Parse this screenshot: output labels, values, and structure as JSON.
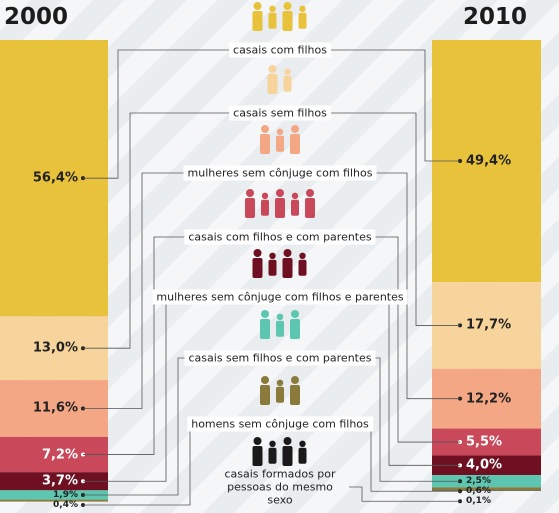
{
  "chart_data": {
    "type": "stacked-bar",
    "categories": [
      "2000",
      "2010"
    ],
    "series": [
      {
        "name": "casais com filhos",
        "color": "#e9c23b",
        "values": [
          56.4,
          49.4
        ],
        "value_labels": [
          "56,4%",
          "49,4%"
        ]
      },
      {
        "name": "casais sem filhos",
        "color": "#f7d49c",
        "values": [
          13.0,
          17.7
        ],
        "value_labels": [
          "13,0%",
          "17,7%"
        ]
      },
      {
        "name": "mulheres sem cônjuge com filhos",
        "color": "#f4a784",
        "values": [
          11.6,
          12.2
        ],
        "value_labels": [
          "11,6%",
          "12,2%"
        ]
      },
      {
        "name": "casais com filhos e com parentes",
        "color": "#c9495a",
        "values": [
          7.2,
          5.5
        ],
        "value_labels": [
          "7,2%",
          "5,5%"
        ]
      },
      {
        "name": "mulheres sem cônjuge com filhos e parentes",
        "color": "#6e0f22",
        "values": [
          3.7,
          4.0
        ],
        "value_labels": [
          "3,7%",
          "4,0%"
        ]
      },
      {
        "name": "casais sem filhos e com parentes",
        "color": "#5cc6b0",
        "values": [
          1.9,
          2.5
        ],
        "value_labels": [
          "1,9%",
          "2,5%"
        ]
      },
      {
        "name": "homens sem cônjuge com filhos",
        "color": "#8a7a3c",
        "values": [
          0.4,
          0.6
        ],
        "value_labels": [
          "0,4%",
          "0,6%"
        ]
      },
      {
        "name": "casais formados por pessoas do mesmo sexo",
        "color": "#1a1a1a",
        "values": [
          null,
          0.1
        ],
        "value_labels": [
          null,
          "0,1%"
        ]
      }
    ]
  }
}
